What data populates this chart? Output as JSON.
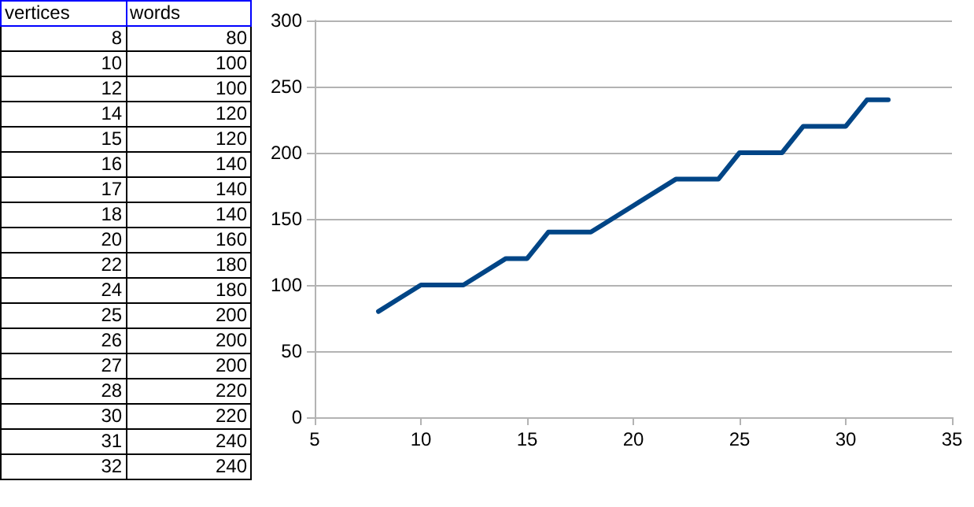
{
  "chart_data": [
    {
      "type": "other",
      "annotations": [
        "vertices",
        "words",
        "8",
        "80",
        "10",
        "100",
        "12",
        "100",
        "14",
        "120",
        "15",
        "120",
        "16",
        "140",
        "17",
        "140",
        "18",
        "140",
        "20",
        "160",
        "22",
        "180",
        "24",
        "180",
        "25",
        "200",
        "26",
        "200",
        "27",
        "200",
        "28",
        "220",
        "30",
        "220",
        "31",
        "240",
        "32",
        "240"
      ]
    },
    {
      "type": "line",
      "x": [
        8,
        10,
        12,
        14,
        15,
        16,
        17,
        18,
        20,
        22,
        24,
        25,
        26,
        27,
        28,
        30,
        31,
        32
      ],
      "series": [
        {
          "color": "#004586",
          "values": [
            80,
            100,
            100,
            120,
            120,
            140,
            140,
            140,
            160,
            180,
            180,
            200,
            200,
            200,
            220,
            220,
            240,
            240
          ]
        }
      ],
      "xlim": [
        5,
        35
      ],
      "xticks": [
        5,
        10,
        15,
        20,
        25,
        30,
        35
      ],
      "ylim": [
        0,
        300
      ],
      "yticks": [
        0,
        50,
        100,
        150,
        200,
        250,
        300
      ],
      "grid": "y",
      "marker": "none",
      "line_style": "solid"
    }
  ]
}
